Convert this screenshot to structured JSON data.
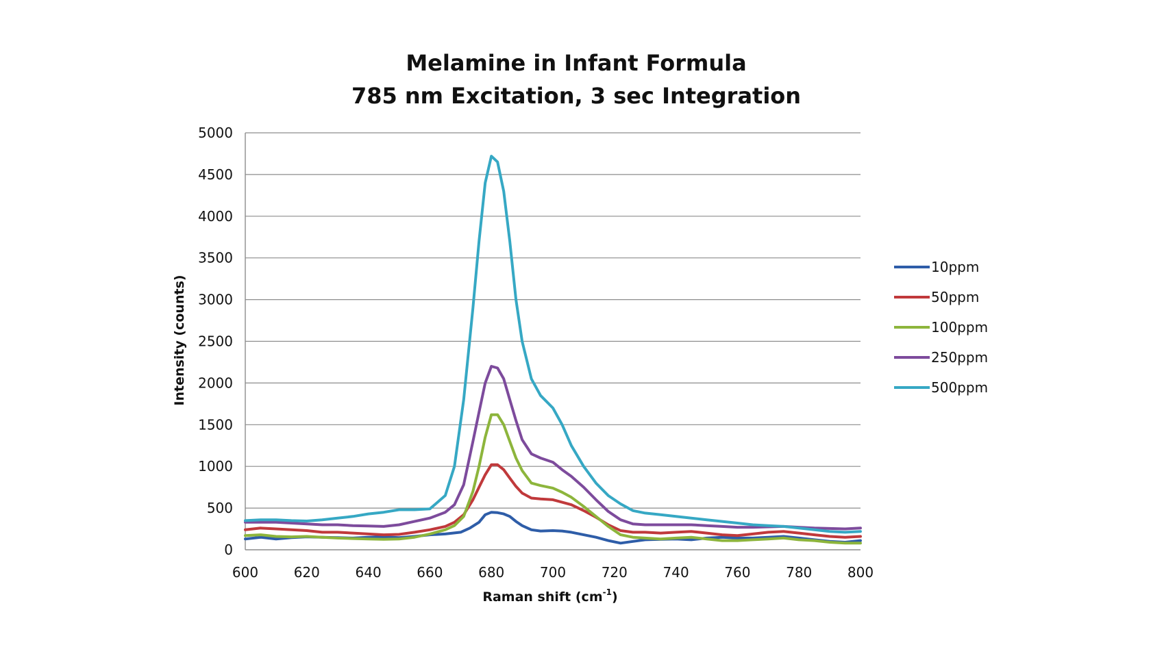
{
  "chart_data": {
    "type": "line",
    "title": "Melamine in Infant Formula",
    "subtitle": "785 nm Excitation, 3 sec Integration",
    "xlabel": "Raman shift (cm",
    "xlabel_sup": "-1",
    "xlabel_close": ")",
    "ylabel": "Intensity (counts)",
    "xlim": [
      600,
      800
    ],
    "ylim": [
      0,
      5000
    ],
    "x_ticks": [
      "600",
      "620",
      "640",
      "660",
      "680",
      "700",
      "720",
      "740",
      "760",
      "780",
      "800"
    ],
    "y_ticks": [
      "0",
      "500",
      "1000",
      "1500",
      "2000",
      "2500",
      "3000",
      "3500",
      "4000",
      "4500",
      "5000"
    ],
    "grid": "horizontal",
    "legend_position": "right",
    "series": [
      {
        "name": "10ppm",
        "color": "#2e5da8",
        "points": [
          [
            600,
            130
          ],
          [
            605,
            150
          ],
          [
            610,
            130
          ],
          [
            615,
            145
          ],
          [
            620,
            155
          ],
          [
            625,
            150
          ],
          [
            630,
            145
          ],
          [
            635,
            140
          ],
          [
            640,
            150
          ],
          [
            645,
            155
          ],
          [
            650,
            145
          ],
          [
            655,
            160
          ],
          [
            660,
            180
          ],
          [
            665,
            190
          ],
          [
            670,
            210
          ],
          [
            673,
            260
          ],
          [
            676,
            330
          ],
          [
            678,
            420
          ],
          [
            680,
            450
          ],
          [
            682,
            445
          ],
          [
            684,
            430
          ],
          [
            686,
            400
          ],
          [
            688,
            340
          ],
          [
            690,
            290
          ],
          [
            693,
            240
          ],
          [
            696,
            225
          ],
          [
            700,
            230
          ],
          [
            703,
            225
          ],
          [
            706,
            210
          ],
          [
            710,
            180
          ],
          [
            714,
            150
          ],
          [
            718,
            110
          ],
          [
            722,
            80
          ],
          [
            726,
            100
          ],
          [
            730,
            120
          ],
          [
            735,
            125
          ],
          [
            740,
            130
          ],
          [
            745,
            120
          ],
          [
            750,
            140
          ],
          [
            755,
            150
          ],
          [
            760,
            140
          ],
          [
            765,
            140
          ],
          [
            770,
            150
          ],
          [
            775,
            160
          ],
          [
            780,
            140
          ],
          [
            785,
            120
          ],
          [
            790,
            100
          ],
          [
            795,
            90
          ],
          [
            800,
            110
          ]
        ]
      },
      {
        "name": "50ppm",
        "color": "#c0393b",
        "points": [
          [
            600,
            240
          ],
          [
            605,
            260
          ],
          [
            610,
            250
          ],
          [
            615,
            240
          ],
          [
            620,
            230
          ],
          [
            625,
            210
          ],
          [
            630,
            210
          ],
          [
            635,
            200
          ],
          [
            640,
            190
          ],
          [
            645,
            180
          ],
          [
            650,
            185
          ],
          [
            655,
            210
          ],
          [
            660,
            240
          ],
          [
            665,
            280
          ],
          [
            668,
            330
          ],
          [
            671,
            420
          ],
          [
            674,
            600
          ],
          [
            676,
            750
          ],
          [
            678,
            900
          ],
          [
            680,
            1020
          ],
          [
            682,
            1020
          ],
          [
            684,
            960
          ],
          [
            686,
            860
          ],
          [
            688,
            760
          ],
          [
            690,
            680
          ],
          [
            693,
            620
          ],
          [
            696,
            610
          ],
          [
            700,
            600
          ],
          [
            703,
            570
          ],
          [
            706,
            540
          ],
          [
            710,
            470
          ],
          [
            714,
            390
          ],
          [
            718,
            300
          ],
          [
            722,
            230
          ],
          [
            726,
            210
          ],
          [
            730,
            210
          ],
          [
            735,
            200
          ],
          [
            740,
            210
          ],
          [
            745,
            220
          ],
          [
            750,
            200
          ],
          [
            755,
            180
          ],
          [
            760,
            170
          ],
          [
            765,
            190
          ],
          [
            770,
            210
          ],
          [
            775,
            220
          ],
          [
            780,
            200
          ],
          [
            785,
            180
          ],
          [
            790,
            160
          ],
          [
            795,
            150
          ],
          [
            800,
            160
          ]
        ]
      },
      {
        "name": "100ppm",
        "color": "#8db53c",
        "points": [
          [
            600,
            170
          ],
          [
            605,
            180
          ],
          [
            610,
            160
          ],
          [
            615,
            155
          ],
          [
            620,
            160
          ],
          [
            625,
            150
          ],
          [
            630,
            140
          ],
          [
            635,
            135
          ],
          [
            640,
            130
          ],
          [
            645,
            125
          ],
          [
            650,
            130
          ],
          [
            655,
            150
          ],
          [
            660,
            190
          ],
          [
            665,
            240
          ],
          [
            668,
            290
          ],
          [
            671,
            400
          ],
          [
            674,
            700
          ],
          [
            676,
            1000
          ],
          [
            678,
            1350
          ],
          [
            680,
            1620
          ],
          [
            682,
            1620
          ],
          [
            684,
            1500
          ],
          [
            686,
            1300
          ],
          [
            688,
            1100
          ],
          [
            690,
            950
          ],
          [
            693,
            800
          ],
          [
            696,
            770
          ],
          [
            700,
            740
          ],
          [
            703,
            690
          ],
          [
            706,
            630
          ],
          [
            710,
            520
          ],
          [
            714,
            400
          ],
          [
            718,
            280
          ],
          [
            722,
            180
          ],
          [
            726,
            150
          ],
          [
            730,
            140
          ],
          [
            735,
            130
          ],
          [
            740,
            140
          ],
          [
            745,
            150
          ],
          [
            750,
            130
          ],
          [
            755,
            110
          ],
          [
            760,
            110
          ],
          [
            765,
            120
          ],
          [
            770,
            130
          ],
          [
            775,
            140
          ],
          [
            780,
            120
          ],
          [
            785,
            110
          ],
          [
            790,
            90
          ],
          [
            795,
            80
          ],
          [
            800,
            80
          ]
        ]
      },
      {
        "name": "250ppm",
        "color": "#7d4b9c",
        "points": [
          [
            600,
            330
          ],
          [
            605,
            330
          ],
          [
            610,
            330
          ],
          [
            615,
            320
          ],
          [
            620,
            310
          ],
          [
            625,
            300
          ],
          [
            630,
            300
          ],
          [
            635,
            290
          ],
          [
            640,
            285
          ],
          [
            645,
            280
          ],
          [
            650,
            300
          ],
          [
            655,
            340
          ],
          [
            660,
            380
          ],
          [
            665,
            450
          ],
          [
            668,
            540
          ],
          [
            671,
            780
          ],
          [
            674,
            1300
          ],
          [
            676,
            1650
          ],
          [
            678,
            2000
          ],
          [
            680,
            2200
          ],
          [
            682,
            2180
          ],
          [
            684,
            2050
          ],
          [
            686,
            1800
          ],
          [
            688,
            1550
          ],
          [
            690,
            1320
          ],
          [
            693,
            1150
          ],
          [
            696,
            1100
          ],
          [
            700,
            1050
          ],
          [
            703,
            960
          ],
          [
            706,
            880
          ],
          [
            710,
            750
          ],
          [
            714,
            600
          ],
          [
            718,
            460
          ],
          [
            722,
            360
          ],
          [
            726,
            310
          ],
          [
            730,
            300
          ],
          [
            735,
            300
          ],
          [
            740,
            300
          ],
          [
            745,
            300
          ],
          [
            750,
            290
          ],
          [
            755,
            280
          ],
          [
            760,
            270
          ],
          [
            765,
            270
          ],
          [
            770,
            275
          ],
          [
            775,
            280
          ],
          [
            780,
            270
          ],
          [
            785,
            260
          ],
          [
            790,
            255
          ],
          [
            795,
            250
          ],
          [
            800,
            260
          ]
        ]
      },
      {
        "name": "500ppm",
        "color": "#36a8c4",
        "points": [
          [
            600,
            350
          ],
          [
            605,
            360
          ],
          [
            610,
            360
          ],
          [
            615,
            350
          ],
          [
            620,
            345
          ],
          [
            625,
            360
          ],
          [
            630,
            380
          ],
          [
            635,
            400
          ],
          [
            640,
            430
          ],
          [
            645,
            450
          ],
          [
            650,
            480
          ],
          [
            655,
            480
          ],
          [
            660,
            490
          ],
          [
            665,
            650
          ],
          [
            668,
            1000
          ],
          [
            671,
            1800
          ],
          [
            674,
            2900
          ],
          [
            676,
            3700
          ],
          [
            678,
            4400
          ],
          [
            680,
            4720
          ],
          [
            682,
            4650
          ],
          [
            684,
            4300
          ],
          [
            686,
            3700
          ],
          [
            688,
            3000
          ],
          [
            690,
            2500
          ],
          [
            693,
            2050
          ],
          [
            696,
            1850
          ],
          [
            700,
            1700
          ],
          [
            703,
            1500
          ],
          [
            706,
            1250
          ],
          [
            710,
            1000
          ],
          [
            714,
            800
          ],
          [
            718,
            650
          ],
          [
            722,
            550
          ],
          [
            726,
            470
          ],
          [
            730,
            440
          ],
          [
            735,
            420
          ],
          [
            740,
            400
          ],
          [
            745,
            380
          ],
          [
            750,
            360
          ],
          [
            755,
            340
          ],
          [
            760,
            320
          ],
          [
            765,
            300
          ],
          [
            770,
            290
          ],
          [
            775,
            280
          ],
          [
            780,
            260
          ],
          [
            785,
            240
          ],
          [
            790,
            220
          ],
          [
            795,
            210
          ],
          [
            800,
            220
          ]
        ]
      }
    ]
  }
}
